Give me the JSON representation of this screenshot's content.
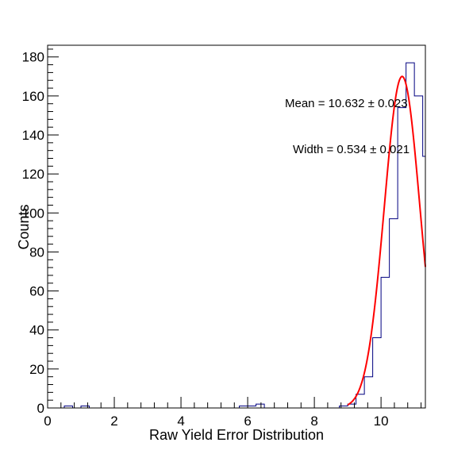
{
  "chart_data": {
    "type": "histogram",
    "xlabel": "Raw Yield Error Distribution",
    "ylabel": "Counts",
    "xlim": [
      0,
      11.33
    ],
    "ylim": [
      0,
      186
    ],
    "x_ticks": [
      0,
      2,
      4,
      6,
      8,
      10
    ],
    "y_ticks": [
      0,
      20,
      40,
      60,
      80,
      100,
      120,
      140,
      160,
      180
    ],
    "bin_width": 0.25,
    "histogram_color": "#000080",
    "fit_color": "#ff0000",
    "bins": [
      {
        "x0": 0.5,
        "x1": 0.75,
        "count": 1
      },
      {
        "x0": 1.0,
        "x1": 1.25,
        "count": 1
      },
      {
        "x0": 5.75,
        "x1": 6.0,
        "count": 1
      },
      {
        "x0": 6.0,
        "x1": 6.25,
        "count": 1
      },
      {
        "x0": 6.25,
        "x1": 6.5,
        "count": 2
      },
      {
        "x0": 8.75,
        "x1": 9.0,
        "count": 1
      },
      {
        "x0": 9.0,
        "x1": 9.25,
        "count": 2
      },
      {
        "x0": 9.25,
        "x1": 9.5,
        "count": 7
      },
      {
        "x0": 9.5,
        "x1": 9.75,
        "count": 16
      },
      {
        "x0": 9.75,
        "x1": 10.0,
        "count": 36
      },
      {
        "x0": 10.0,
        "x1": 10.25,
        "count": 67
      },
      {
        "x0": 10.25,
        "x1": 10.5,
        "count": 97
      },
      {
        "x0": 10.5,
        "x1": 10.75,
        "count": 154
      },
      {
        "x0": 10.75,
        "x1": 11.0,
        "count": 177
      },
      {
        "x0": 11.0,
        "x1": 11.25,
        "count": 160
      },
      {
        "x0": 11.25,
        "x1": 11.33,
        "count": 129
      }
    ],
    "fit": {
      "function": "gaussian",
      "amplitude": 170,
      "mean": 10.632,
      "sigma": 0.534,
      "x_range": [
        9.0,
        11.33
      ]
    },
    "annotations": {
      "mean_text": "Mean = 10.632 ± 0.023",
      "width_text": "Width = 0.534 ± 0.021"
    }
  }
}
